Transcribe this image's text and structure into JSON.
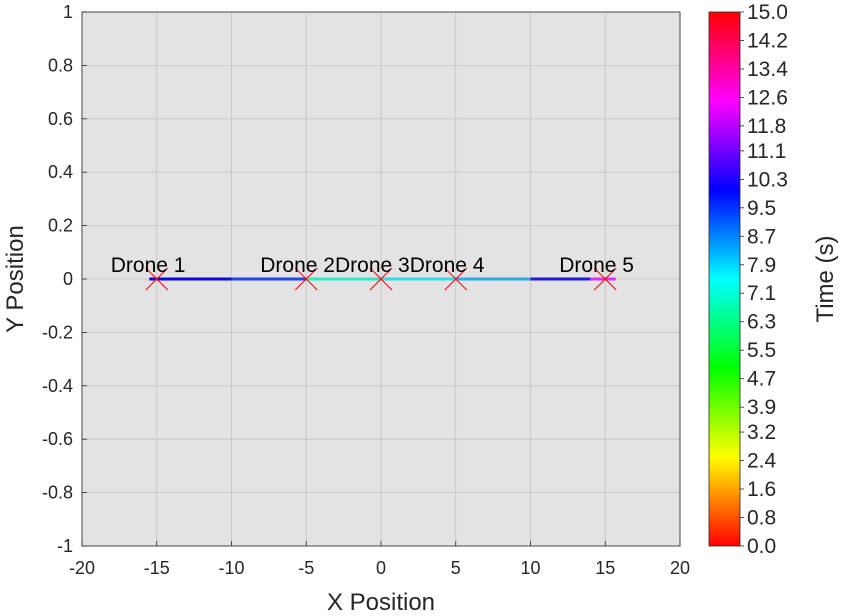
{
  "chart_data": {
    "type": "line",
    "xlabel": "X Position",
    "ylabel": "Y Position",
    "xlim": [
      -20,
      20
    ],
    "ylim": [
      -1,
      1
    ],
    "x_ticks": [
      "-20",
      "-15",
      "-10",
      "-5",
      "0",
      "5",
      "10",
      "15",
      "20"
    ],
    "y_ticks": [
      "1",
      "0.8",
      "0.6",
      "0.4",
      "0.2",
      "0",
      "-0.2",
      "-0.4",
      "-0.6",
      "-0.8",
      "-1"
    ],
    "grid": true,
    "trajectory_segments": [
      {
        "x": [
          -15.5,
          -10
        ],
        "y": [
          0,
          0
        ],
        "time": 10.3,
        "color": "#0a0ae0"
      },
      {
        "x": [
          -10,
          -5
        ],
        "y": [
          0,
          0
        ],
        "time": 9.9,
        "color": "#1848e8"
      },
      {
        "x": [
          -5,
          0
        ],
        "y": [
          0,
          0
        ],
        "time": 7.1,
        "color": "#2ee8c8"
      },
      {
        "x": [
          0,
          5
        ],
        "y": [
          0,
          0
        ],
        "time": 7.9,
        "color": "#38d8f0"
      },
      {
        "x": [
          5,
          10
        ],
        "y": [
          0,
          0
        ],
        "time": 8.7,
        "color": "#2aa8ec"
      },
      {
        "x": [
          10,
          14
        ],
        "y": [
          0,
          0
        ],
        "time": 10.3,
        "color": "#1c1ce0"
      },
      {
        "x": [
          14,
          15.7
        ],
        "y": [
          0,
          0
        ],
        "time": 12.6,
        "color": "#e02cff"
      }
    ],
    "drones": [
      {
        "name": "Drone 1",
        "x": -15,
        "y": 0
      },
      {
        "name": "Drone 2",
        "x": -5,
        "y": 0
      },
      {
        "name": "Drone 3",
        "x": 0,
        "y": 0
      },
      {
        "name": "Drone 4",
        "x": 5,
        "y": 0
      },
      {
        "name": "Drone 5",
        "x": 15,
        "y": 0
      }
    ],
    "marker_color": "#ff0000",
    "plot_background": "#e3e3e3",
    "colorbar": {
      "label": "Time (s)",
      "range": [
        0,
        15
      ],
      "colormap": "hsv",
      "tick_labels": [
        "15.0",
        "14.2",
        "13.4",
        "12.6",
        "11.8",
        "11.1",
        "10.3",
        "9.5",
        "8.7",
        "7.9",
        "7.1",
        "6.3",
        "5.5",
        "4.7",
        "3.9",
        "3.2",
        "2.4",
        "1.6",
        "0.8",
        "0.0"
      ]
    }
  }
}
